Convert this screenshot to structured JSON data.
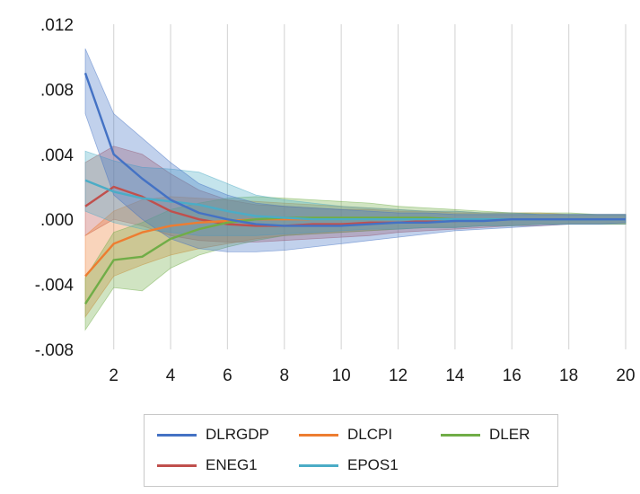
{
  "chart_data": {
    "type": "line",
    "title": "",
    "xlabel": "",
    "ylabel": "",
    "xlim": [
      1,
      20
    ],
    "ylim": [
      -0.008,
      0.012
    ],
    "x_ticks": [
      2,
      4,
      6,
      8,
      10,
      12,
      14,
      16,
      18,
      20
    ],
    "x_tick_labels": [
      "2",
      "4",
      "6",
      "8",
      "10",
      "12",
      "14",
      "16",
      "18",
      "20"
    ],
    "y_ticks": [
      -0.008,
      -0.004,
      0.0,
      0.004,
      0.008,
      0.012
    ],
    "y_tick_labels": [
      "-.008",
      "-.004",
      ".000",
      ".004",
      ".008",
      ".012"
    ],
    "grid": "vertical",
    "legend_position": "bottom",
    "x": [
      1,
      2,
      3,
      4,
      5,
      6,
      7,
      8,
      9,
      10,
      11,
      12,
      13,
      14,
      15,
      16,
      17,
      18,
      19,
      20
    ],
    "series": [
      {
        "name": "DLRGDP",
        "color": "#4472c4",
        "values": [
          0.009,
          0.004,
          0.0025,
          0.0012,
          0.0004,
          0.0,
          -0.0003,
          -0.0004,
          -0.0004,
          -0.0004,
          -0.0003,
          -0.0002,
          -0.0002,
          -0.0001,
          -0.0001,
          0.0,
          0.0,
          0.0,
          0.0,
          0.0
        ],
        "lower": [
          0.0065,
          0.0015,
          0.0,
          -0.0012,
          -0.0018,
          -0.002,
          -0.002,
          -0.0019,
          -0.0017,
          -0.0015,
          -0.0013,
          -0.0011,
          -0.0009,
          -0.0007,
          -0.0006,
          -0.0005,
          -0.0004,
          -0.0003,
          -0.0003,
          -0.0002
        ],
        "upper": [
          0.0105,
          0.0065,
          0.005,
          0.0035,
          0.0022,
          0.0015,
          0.001,
          0.0008,
          0.0007,
          0.0006,
          0.0005,
          0.0004,
          0.0004,
          0.0003,
          0.0003,
          0.0003,
          0.0003,
          0.0003,
          0.0003,
          0.0003
        ]
      },
      {
        "name": "DLCPI",
        "color": "#ed7d31",
        "values": [
          -0.0035,
          -0.0015,
          -0.0008,
          -0.0004,
          -0.0002,
          -0.0001,
          0.0,
          0.0,
          0.0,
          0.0,
          0.0,
          0.0,
          0.0,
          0.0,
          0.0,
          0.0,
          0.0,
          0.0,
          0.0,
          0.0
        ],
        "lower": [
          -0.006,
          -0.0035,
          -0.0028,
          -0.0022,
          -0.0018,
          -0.0015,
          -0.0012,
          -0.001,
          -0.0009,
          -0.0008,
          -0.0007,
          -0.0006,
          -0.0005,
          -0.0005,
          -0.0004,
          -0.0004,
          -0.0003,
          -0.0003,
          -0.0003,
          -0.0003
        ],
        "upper": [
          -0.001,
          0.0005,
          0.0012,
          0.0014,
          0.0013,
          0.0012,
          0.0011,
          0.001,
          0.0009,
          0.0008,
          0.0007,
          0.0006,
          0.0005,
          0.0005,
          0.0004,
          0.0004,
          0.0004,
          0.0003,
          0.0003,
          0.0003
        ]
      },
      {
        "name": "DLER",
        "color": "#70ad47",
        "values": [
          -0.0052,
          -0.0025,
          -0.0023,
          -0.0012,
          -0.0006,
          -0.0002,
          0.0,
          0.0001,
          0.0001,
          0.0001,
          0.0001,
          0.0001,
          0.0001,
          0.0,
          0.0,
          0.0,
          0.0,
          0.0,
          0.0,
          0.0
        ],
        "lower": [
          -0.0068,
          -0.0042,
          -0.0044,
          -0.003,
          -0.0022,
          -0.0017,
          -0.0013,
          -0.001,
          -0.0009,
          -0.0008,
          -0.0007,
          -0.0006,
          -0.0005,
          -0.0005,
          -0.0004,
          -0.0004,
          -0.0003,
          -0.0003,
          -0.0003,
          -0.0003
        ],
        "upper": [
          -0.0036,
          -0.0008,
          -0.0002,
          0.0006,
          0.001,
          0.0013,
          0.0014,
          0.0013,
          0.0012,
          0.0011,
          0.001,
          0.0008,
          0.0007,
          0.0006,
          0.0005,
          0.0004,
          0.0004,
          0.0004,
          0.0003,
          0.0003
        ]
      },
      {
        "name": "ENEG1",
        "color": "#c0504d",
        "values": [
          0.0008,
          0.002,
          0.0014,
          0.0005,
          0.0,
          -0.0003,
          -0.0004,
          -0.0004,
          -0.0003,
          -0.0003,
          -0.0002,
          -0.0002,
          -0.0001,
          -0.0001,
          0.0,
          0.0,
          0.0,
          0.0,
          0.0,
          0.0
        ],
        "lower": [
          -0.001,
          0.0,
          -0.0004,
          -0.001,
          -0.0013,
          -0.0014,
          -0.0014,
          -0.0013,
          -0.0012,
          -0.0011,
          -0.001,
          -0.0008,
          -0.0007,
          -0.0006,
          -0.0005,
          -0.0004,
          -0.0004,
          -0.0003,
          -0.0003,
          -0.0003
        ],
        "upper": [
          0.0035,
          0.0045,
          0.004,
          0.0028,
          0.0018,
          0.0012,
          0.0009,
          0.0008,
          0.0007,
          0.0006,
          0.0006,
          0.0005,
          0.0005,
          0.0004,
          0.0004,
          0.0004,
          0.0003,
          0.0003,
          0.0003,
          0.0003
        ]
      },
      {
        "name": "EPOS1",
        "color": "#4bacc6",
        "values": [
          0.0024,
          0.0017,
          0.0013,
          0.0011,
          0.0009,
          0.0005,
          0.0002,
          0.0001,
          0.0,
          0.0,
          0.0,
          0.0,
          0.0,
          0.0,
          0.0,
          0.0,
          0.0,
          0.0,
          0.0,
          0.0
        ],
        "lower": [
          0.0005,
          -0.0002,
          -0.0006,
          -0.0008,
          -0.001,
          -0.001,
          -0.001,
          -0.0009,
          -0.0008,
          -0.0007,
          -0.0006,
          -0.0006,
          -0.0005,
          -0.0005,
          -0.0004,
          -0.0004,
          -0.0003,
          -0.0003,
          -0.0003,
          -0.0003
        ],
        "upper": [
          0.0042,
          0.0036,
          0.0032,
          0.0031,
          0.0029,
          0.0022,
          0.0015,
          0.0012,
          0.001,
          0.0008,
          0.0007,
          0.0006,
          0.0005,
          0.0005,
          0.0004,
          0.0004,
          0.0003,
          0.0003,
          0.0003,
          0.0003
        ]
      }
    ]
  }
}
